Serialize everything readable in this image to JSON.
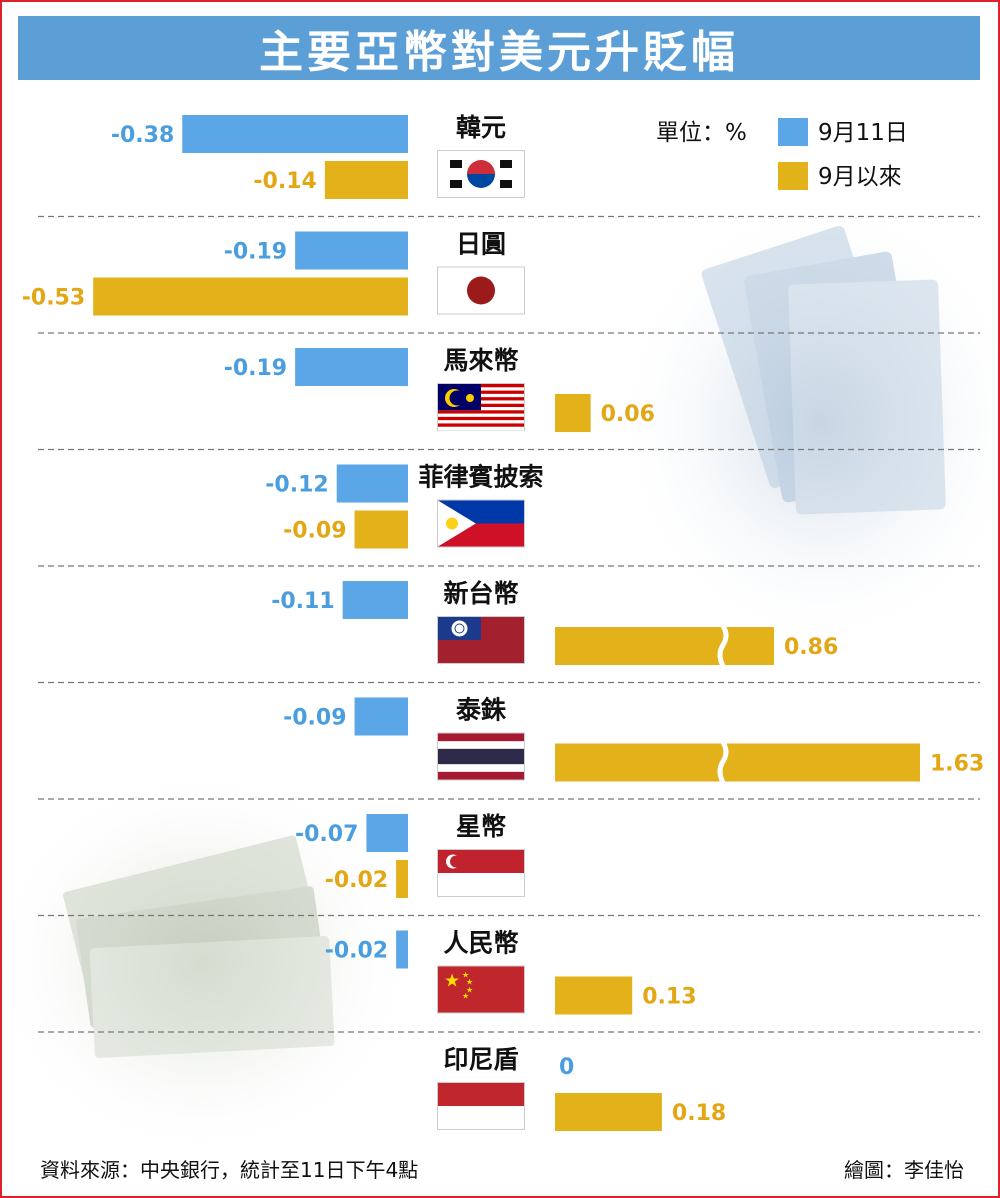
{
  "title": "主要亞幣對美元升貶幅",
  "legend": {
    "unit": "單位：%",
    "series1_label": "9月11日",
    "series2_label": "9月以來",
    "series1_color": "#5aa6e6",
    "series2_color": "#e3b11a"
  },
  "source": "資料來源：中央銀行，統計至11日下午4點",
  "credit": "繪圖：李佳怡",
  "chart_data": {
    "type": "bar",
    "title": "主要亞幣對美元升貶幅",
    "unit": "單位：%",
    "categories": [
      "韓元",
      "日圓",
      "馬來幣",
      "菲律賓披索",
      "新台幣",
      "泰銖",
      "星幣",
      "人民幣",
      "印尼盾"
    ],
    "series": [
      {
        "name": "9月11日",
        "values": [
          -0.38,
          -0.19,
          -0.19,
          -0.12,
          -0.11,
          -0.09,
          -0.07,
          -0.02,
          0
        ]
      },
      {
        "name": "9月以來",
        "values": [
          -0.14,
          -0.53,
          0.06,
          -0.09,
          0.86,
          1.63,
          -0.02,
          0.13,
          0.18
        ]
      }
    ],
    "labels_series1": [
      "-0.38",
      "-0.19",
      "-0.19",
      "-0.12",
      "-0.11",
      "-0.09",
      "-0.07",
      "-0.02",
      "0"
    ],
    "labels_series2": [
      "-0.14",
      "-0.53",
      "0.06",
      "-0.09",
      "0.86",
      "1.63",
      "-0.02",
      "0.13",
      "0.18"
    ],
    "flags": [
      "korea-flag-icon",
      "japan-flag-icon",
      "malaysia-flag-icon",
      "philippines-flag-icon",
      "taiwan-flag-icon",
      "thailand-flag-icon",
      "singapore-flag-icon",
      "china-flag-icon",
      "indonesia-flag-icon"
    ],
    "broken_axis_bars": [
      4,
      5
    ],
    "grid": false,
    "legend_position": "top-right"
  }
}
